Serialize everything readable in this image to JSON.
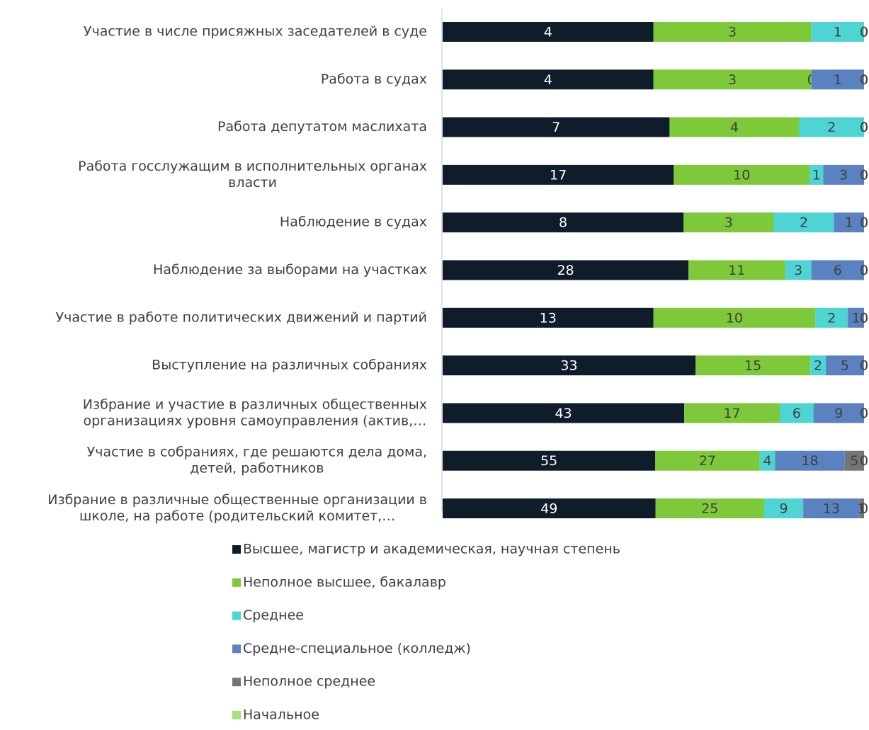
{
  "chart_data": {
    "type": "stacked_bar_100",
    "orientation": "horizontal",
    "categories": [
      [
        "Участие в числе присяжных заседателей в суде"
      ],
      [
        "Работа в судах"
      ],
      [
        "Работа депутатом маслихата"
      ],
      [
        "Работа госслужащим в исполнительных органах",
        "власти"
      ],
      [
        "Наблюдение в судах"
      ],
      [
        "Наблюдение за выборами на участках"
      ],
      [
        "Участие в работе политических движений и партий"
      ],
      [
        "Выступление на различных собраниях"
      ],
      [
        "Избрание и участие в различных общественных",
        "организациях уровня самоуправления (актив,…"
      ],
      [
        "Участие в собраниях, где решаются дела дома,",
        "детей, работников"
      ],
      [
        "Избрание в различные общественные организации в",
        "школе, на работе (родительский комитет,…"
      ]
    ],
    "series": [
      {
        "name": "Высшее, магистр и академическая, научная степень",
        "color": "#0f1c2a",
        "values": [
          4,
          4,
          7,
          17,
          8,
          28,
          13,
          33,
          43,
          55,
          49
        ]
      },
      {
        "name": "Неполное высшее, бакалавр",
        "color": "#7dc93a",
        "values": [
          3,
          3,
          4,
          10,
          3,
          11,
          10,
          15,
          17,
          27,
          25
        ]
      },
      {
        "name": "Среднее",
        "color": "#4fd4d4",
        "values": [
          1,
          0,
          2,
          1,
          2,
          3,
          2,
          2,
          6,
          4,
          9
        ]
      },
      {
        "name": "Средне-специальное (колледж)",
        "color": "#5b82c0",
        "values": [
          0,
          1,
          0,
          3,
          1,
          6,
          1,
          5,
          9,
          18,
          13
        ]
      },
      {
        "name": "Неполное среднее",
        "color": "#757575",
        "values": [
          0,
          0,
          0,
          0,
          0,
          0,
          0,
          0,
          0,
          5,
          1
        ]
      },
      {
        "name": "Начальное",
        "color": "#a6e07a",
        "values": [
          0,
          0,
          0,
          0,
          0,
          0,
          0,
          0,
          0,
          0,
          0
        ]
      }
    ],
    "legend": "bottom"
  }
}
